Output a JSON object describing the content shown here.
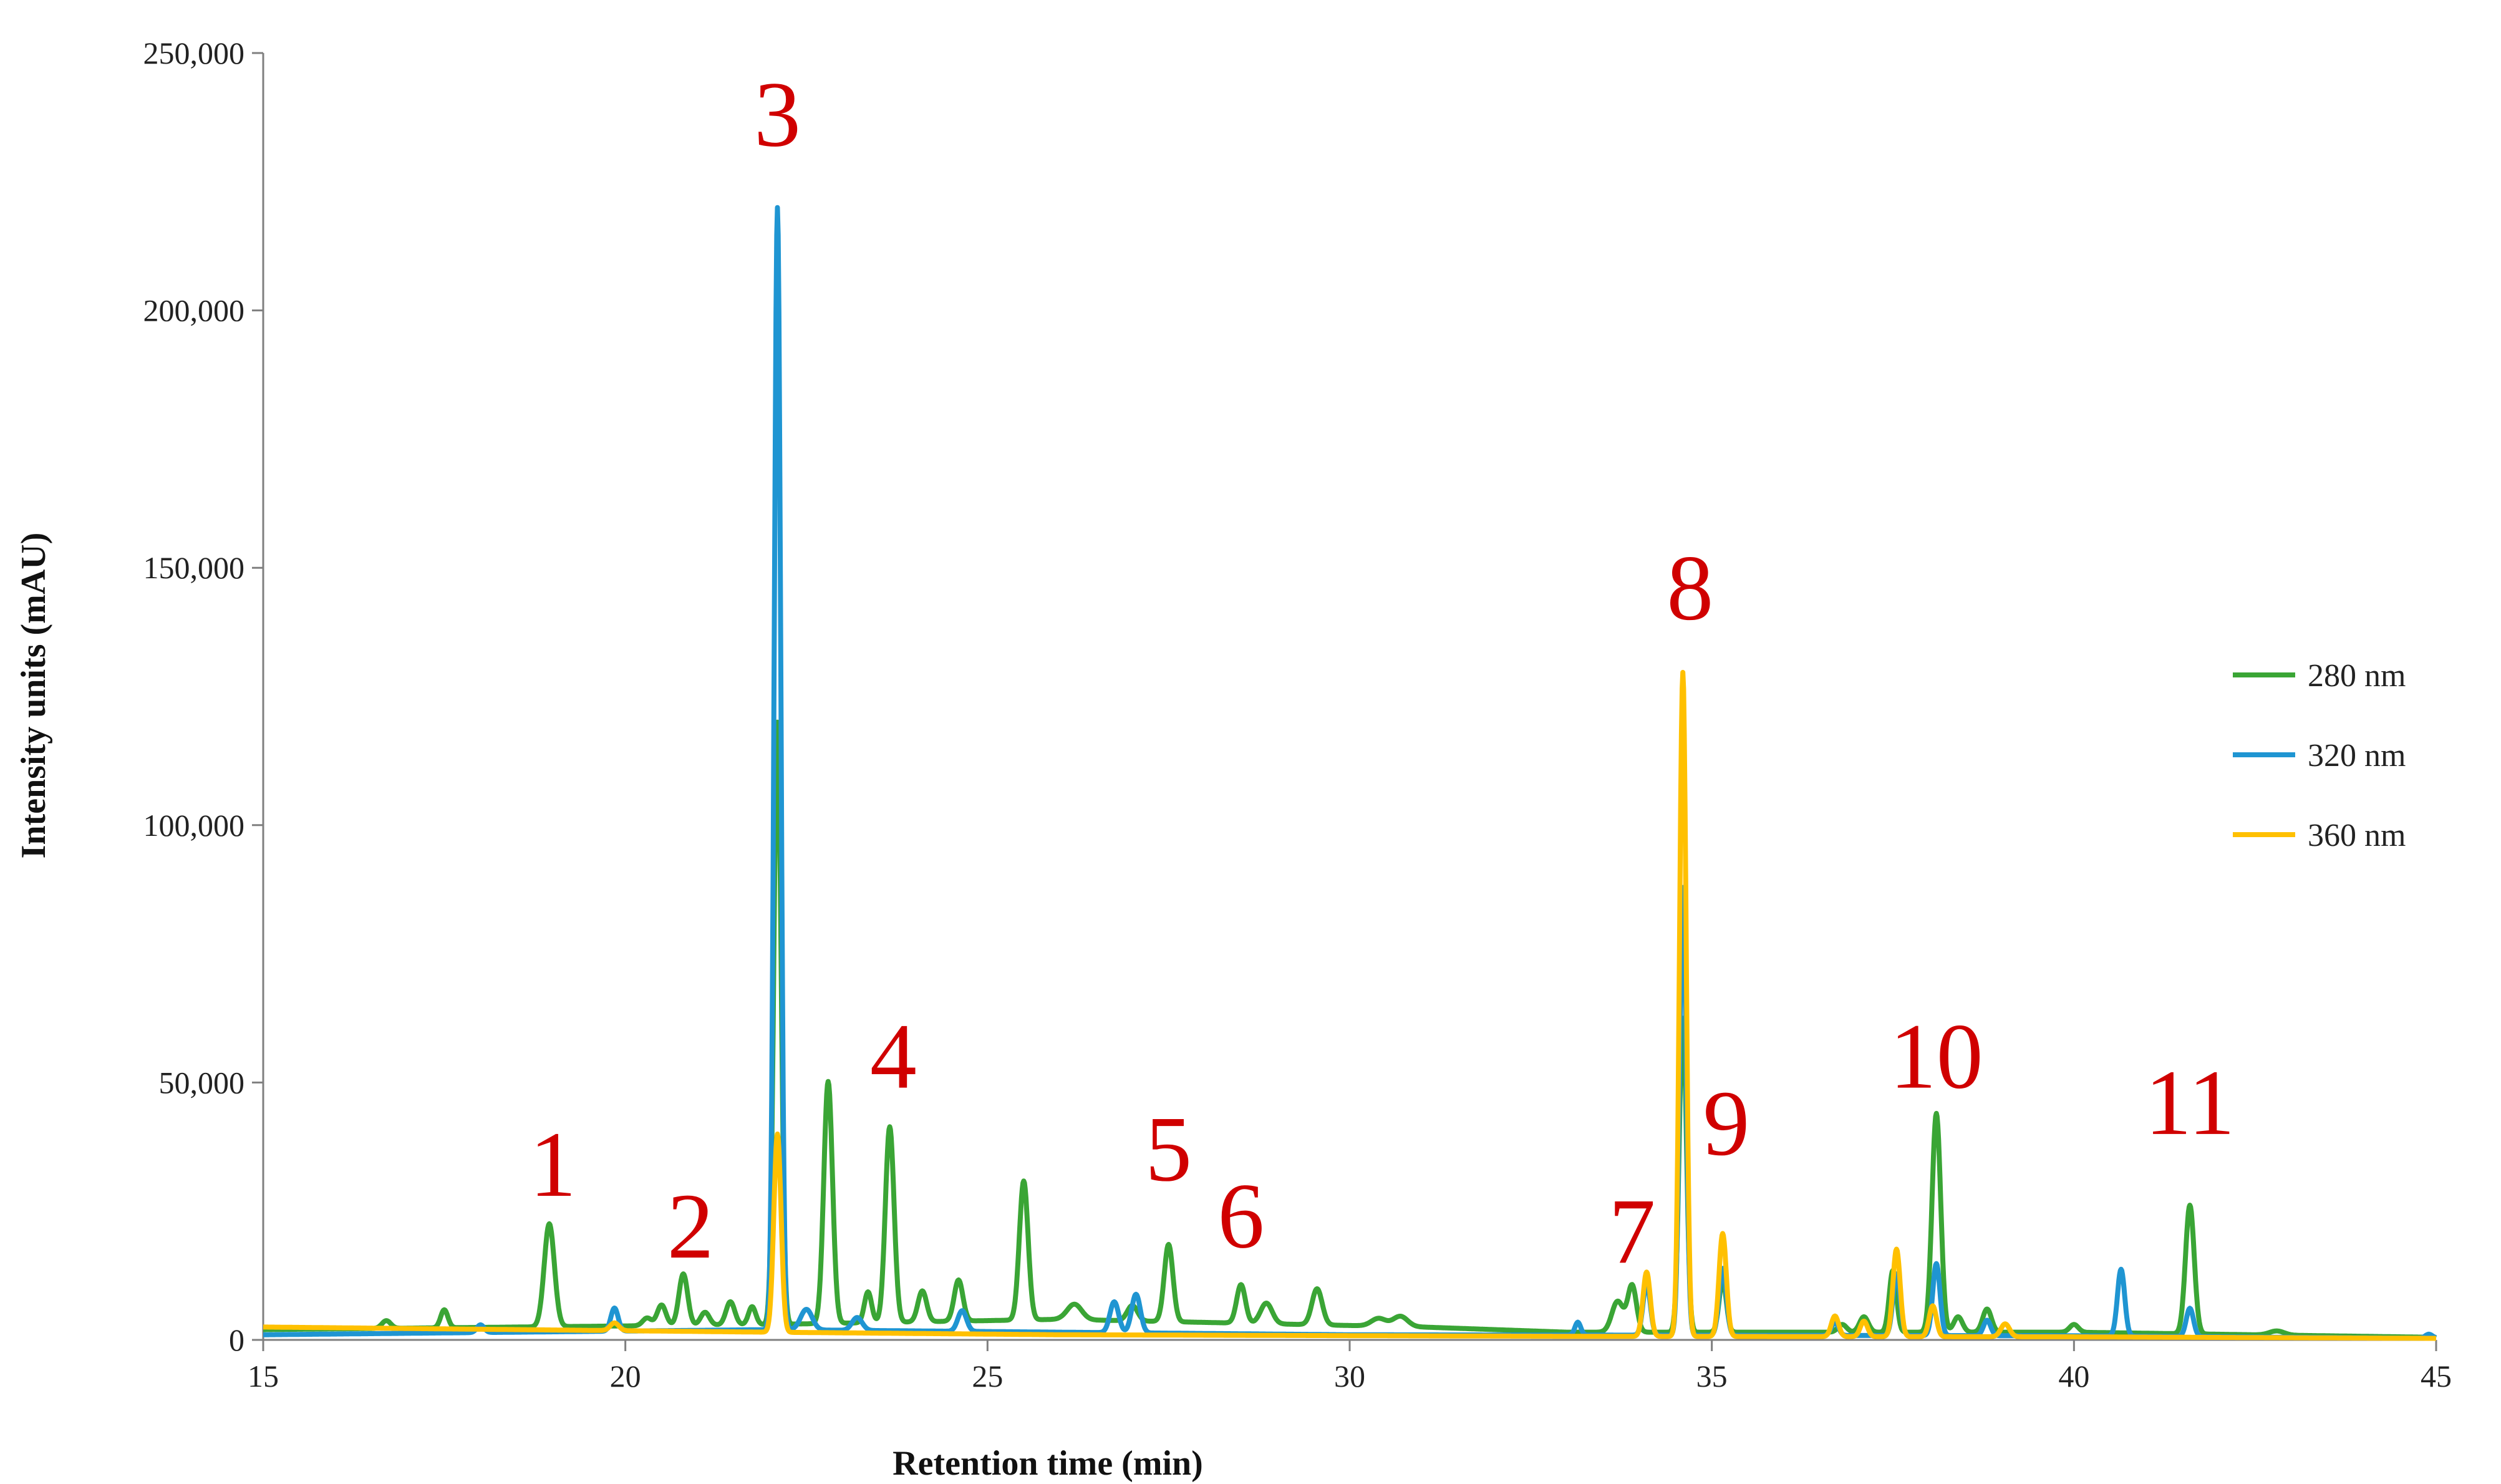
{
  "chart_data": {
    "type": "line",
    "xlabel": "Retention time (min)",
    "ylabel": "Intensity units (mAU)",
    "xlim": [
      15,
      45
    ],
    "ylim": [
      0,
      250000
    ],
    "x_ticks": [
      "15",
      "20",
      "25",
      "30",
      "35",
      "40",
      "45"
    ],
    "y_ticks": [
      "0",
      "50,000",
      "100,000",
      "150,000",
      "200,000",
      "250,000"
    ],
    "grid": false,
    "legend_position": "right",
    "series": [
      {
        "name": "280 nm",
        "color": "#3aa535",
        "baseline": [
          [
            15,
            2000
          ],
          [
            22,
            3000
          ],
          [
            26,
            4000
          ],
          [
            31,
            2500
          ],
          [
            33,
            1500
          ],
          [
            40,
            1500
          ],
          [
            45,
            500
          ]
        ],
        "peaks": [
          [
            16.7,
            1500,
            0.06
          ],
          [
            17.5,
            3500,
            0.05
          ],
          [
            18.95,
            20000,
            0.07
          ],
          [
            20.3,
            1500,
            0.06
          ],
          [
            20.5,
            4000,
            0.06
          ],
          [
            20.8,
            10000,
            0.06
          ],
          [
            21.1,
            2500,
            0.06
          ],
          [
            21.45,
            4500,
            0.06
          ],
          [
            21.75,
            3500,
            0.05
          ],
          [
            22.1,
            117000,
            0.05
          ],
          [
            22.8,
            47000,
            0.06
          ],
          [
            23.35,
            6000,
            0.05
          ],
          [
            23.65,
            38000,
            0.06
          ],
          [
            24.1,
            6000,
            0.06
          ],
          [
            24.6,
            8000,
            0.06
          ],
          [
            25.5,
            27000,
            0.06
          ],
          [
            26.2,
            3000,
            0.1
          ],
          [
            27.0,
            3000,
            0.07
          ],
          [
            27.5,
            15000,
            0.06
          ],
          [
            28.5,
            7500,
            0.06
          ],
          [
            28.85,
            4000,
            0.08
          ],
          [
            29.55,
            7000,
            0.07
          ],
          [
            30.4,
            1500,
            0.1
          ],
          [
            30.7,
            2000,
            0.1
          ],
          [
            33.7,
            6000,
            0.08
          ],
          [
            33.9,
            9000,
            0.06
          ],
          [
            34.6,
            61000,
            0.05
          ],
          [
            35.15,
            10000,
            0.05
          ],
          [
            36.8,
            1500,
            0.06
          ],
          [
            37.1,
            3000,
            0.06
          ],
          [
            37.5,
            12000,
            0.05
          ],
          [
            38.1,
            42500,
            0.06
          ],
          [
            38.4,
            3000,
            0.06
          ],
          [
            38.8,
            4500,
            0.06
          ],
          [
            40.0,
            1500,
            0.06
          ],
          [
            41.6,
            25000,
            0.06
          ],
          [
            42.8,
            800,
            0.1
          ]
        ]
      },
      {
        "name": "320 nm",
        "color": "#1f95d2",
        "baseline": [
          [
            15,
            1000
          ],
          [
            22,
            2000
          ],
          [
            26,
            1500
          ],
          [
            30,
            1000
          ],
          [
            40,
            800
          ],
          [
            45,
            300
          ]
        ],
        "peaks": [
          [
            18.0,
            1500,
            0.05
          ],
          [
            19.85,
            4500,
            0.05
          ],
          [
            22.1,
            218000,
            0.045
          ],
          [
            22.5,
            4000,
            0.08
          ],
          [
            23.2,
            2500,
            0.07
          ],
          [
            24.65,
            4000,
            0.06
          ],
          [
            26.75,
            6000,
            0.06
          ],
          [
            27.05,
            7500,
            0.06
          ],
          [
            33.15,
            2500,
            0.04
          ],
          [
            34.1,
            10000,
            0.05
          ],
          [
            34.6,
            87000,
            0.045
          ],
          [
            35.15,
            13000,
            0.05
          ],
          [
            36.7,
            2500,
            0.05
          ],
          [
            37.55,
            12000,
            0.05
          ],
          [
            38.1,
            14000,
            0.05
          ],
          [
            38.8,
            3000,
            0.05
          ],
          [
            40.65,
            13000,
            0.05
          ],
          [
            41.6,
            5500,
            0.05
          ],
          [
            44.9,
            800,
            0.05
          ]
        ]
      },
      {
        "name": "360 nm",
        "color": "#ffc000",
        "baseline": [
          [
            15,
            2500
          ],
          [
            22,
            1500
          ],
          [
            26,
            1000
          ],
          [
            33,
            700
          ],
          [
            40,
            600
          ],
          [
            45,
            300
          ]
        ],
        "peaks": [
          [
            19.85,
            1500,
            0.06
          ],
          [
            22.1,
            38500,
            0.05
          ],
          [
            34.1,
            12500,
            0.05
          ],
          [
            34.6,
            129000,
            0.045
          ],
          [
            35.15,
            20000,
            0.05
          ],
          [
            36.7,
            4000,
            0.05
          ],
          [
            37.1,
            3000,
            0.05
          ],
          [
            37.55,
            17000,
            0.05
          ],
          [
            38.05,
            6000,
            0.05
          ],
          [
            39.05,
            2500,
            0.06
          ]
        ]
      }
    ],
    "peak_labels": [
      {
        "text": "1",
        "x": 19.0,
        "y": 28000
      },
      {
        "text": "2",
        "x": 20.9,
        "y": 16000
      },
      {
        "text": "3",
        "x": 22.1,
        "y": 232000
      },
      {
        "text": "4",
        "x": 23.7,
        "y": 49000
      },
      {
        "text": "5",
        "x": 27.5,
        "y": 31000
      },
      {
        "text": "6",
        "x": 28.5,
        "y": 18000
      },
      {
        "text": "7",
        "x": 33.9,
        "y": 15000
      },
      {
        "text": "8",
        "x": 34.7,
        "y": 140000
      },
      {
        "text": "9",
        "x": 35.2,
        "y": 36000
      },
      {
        "text": "10",
        "x": 38.1,
        "y": 49000
      },
      {
        "text": "11",
        "x": 41.6,
        "y": 40000
      }
    ]
  }
}
